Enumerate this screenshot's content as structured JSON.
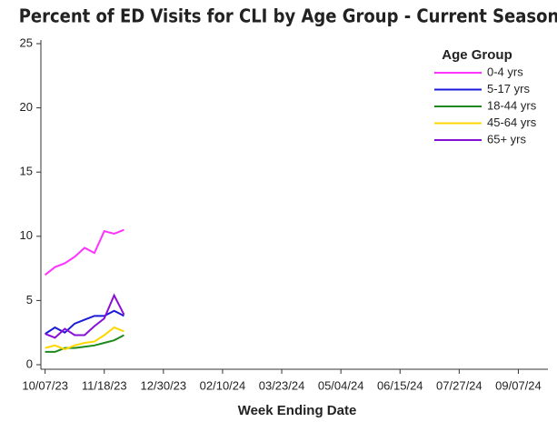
{
  "chart_data": {
    "type": "line",
    "title": "Percent of ED Visits for CLI by Age Group - Current Season",
    "x_label": "Week Ending Date",
    "x": [
      "10/07/23",
      "10/14/23",
      "10/21/23",
      "10/28/23",
      "11/04/23",
      "11/11/23",
      "11/18/23",
      "11/25/23",
      "12/02/23"
    ],
    "xlim": [
      "10/04/23",
      "09/28/24"
    ],
    "xticks": [
      "10/07/23",
      "11/18/23",
      "12/30/23",
      "02/10/24",
      "03/23/24",
      "05/04/24",
      "06/15/24",
      "07/27/24",
      "09/07/24"
    ],
    "ylim": [
      0,
      25
    ],
    "yticks": [
      0,
      5,
      10,
      15,
      20,
      25
    ],
    "legend_title": "Age Group",
    "legend_position": "upper right",
    "series": [
      {
        "name": "0-4 yrs",
        "color": "#ff33ff",
        "values": [
          7.0,
          7.6,
          7.9,
          8.4,
          9.1,
          8.7,
          10.4,
          10.2,
          10.5
        ]
      },
      {
        "name": "5-17 yrs",
        "color": "#1a1ad9",
        "values": [
          2.4,
          2.9,
          2.5,
          3.2,
          3.5,
          3.8,
          3.8,
          4.2,
          3.8
        ]
      },
      {
        "name": "18-44 yrs",
        "color": "#1e8a1e",
        "values": [
          1.0,
          1.0,
          1.3,
          1.3,
          1.4,
          1.5,
          1.7,
          1.9,
          2.3
        ]
      },
      {
        "name": "45-64 yrs",
        "color": "#ffd700",
        "values": [
          1.3,
          1.5,
          1.2,
          1.5,
          1.7,
          1.8,
          2.3,
          2.9,
          2.6
        ]
      },
      {
        "name": "65+ yrs",
        "color": "#8a0fd6",
        "values": [
          2.4,
          2.1,
          2.8,
          2.3,
          2.3,
          3.0,
          3.6,
          5.4,
          3.9
        ]
      }
    ]
  }
}
